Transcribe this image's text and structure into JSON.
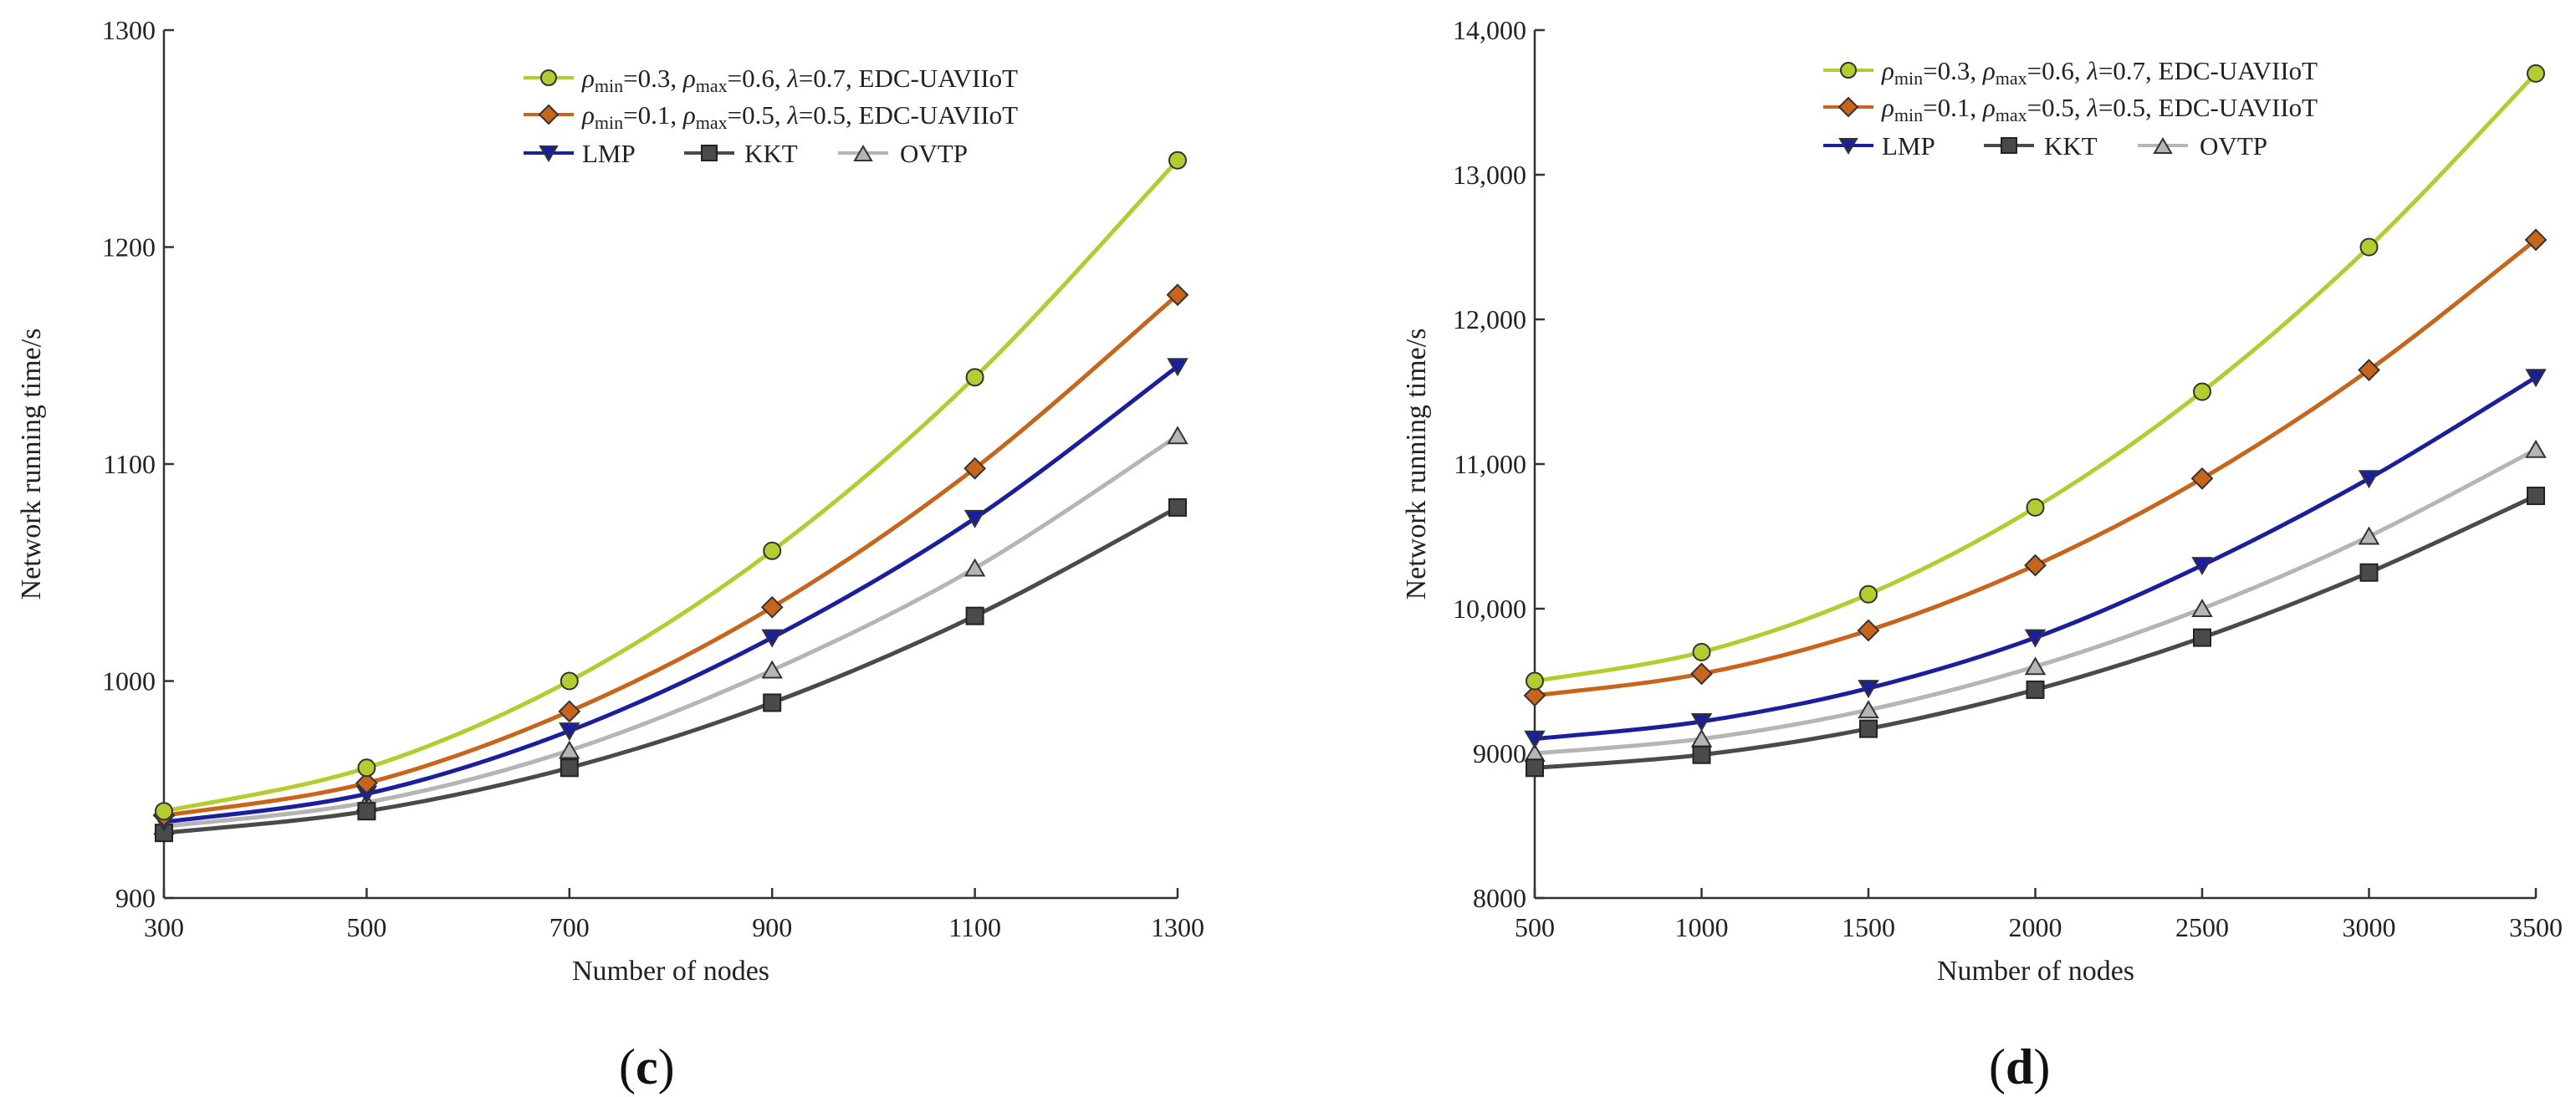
{
  "chart_data": [
    {
      "type": "line",
      "panel_label": "c",
      "xlabel": "Number of nodes",
      "ylabel": "Network running time/s",
      "x": [
        300,
        500,
        700,
        900,
        1100,
        1300
      ],
      "xticks": [
        "300",
        "500",
        "700",
        "900",
        "1100",
        "1300"
      ],
      "yticks": [
        "900",
        "1000",
        "1100",
        "1200",
        "1300"
      ],
      "xlim": [
        300,
        1300
      ],
      "ylim": [
        900,
        1300
      ],
      "series": [
        {
          "key": "s1",
          "rho_min": "0.3",
          "rho_max": "0.6",
          "lambda": "0.7",
          "method": "EDC-UAVIIoT",
          "color": "#b5cc2e",
          "marker": "circle",
          "values": [
            940,
            960,
            1000,
            1060,
            1140,
            1240
          ]
        },
        {
          "key": "s2",
          "rho_min": "0.1",
          "rho_max": "0.5",
          "lambda": "0.5",
          "method": "EDC-UAVIIoT",
          "color": "#c8651b",
          "marker": "diamond",
          "values": [
            938,
            953,
            986,
            1034,
            1098,
            1178
          ]
        },
        {
          "key": "s3",
          "name": "LMP",
          "color": "#1a1f9e",
          "marker": "triangle-down",
          "values": [
            935,
            948,
            977,
            1020,
            1075,
            1145
          ]
        },
        {
          "key": "s4",
          "name": "KKT",
          "color": "#4a4a4a",
          "marker": "square",
          "values": [
            930,
            940,
            960,
            990,
            1030,
            1080
          ]
        },
        {
          "key": "s5",
          "name": "OVTP",
          "color": "#b5b5b5",
          "marker": "triangle-up",
          "values": [
            933,
            944,
            968,
            1005,
            1052,
            1113
          ]
        }
      ]
    },
    {
      "type": "line",
      "panel_label": "d",
      "xlabel": "Number of nodes",
      "ylabel": "Network running time/s",
      "x": [
        500,
        1000,
        1500,
        2000,
        2500,
        3000,
        3500
      ],
      "xticks": [
        "500",
        "1000",
        "1500",
        "2000",
        "2500",
        "3000",
        "3500"
      ],
      "yticks": [
        "8000",
        "9000",
        "10,000",
        "11,000",
        "12,000",
        "13,000",
        "14,000"
      ],
      "xlim": [
        500,
        3500
      ],
      "ylim": [
        8000,
        14000
      ],
      "series": [
        {
          "key": "s1",
          "rho_min": "0.3",
          "rho_max": "0.6",
          "lambda": "0.7",
          "method": "EDC-UAVIIoT",
          "color": "#b5cc2e",
          "marker": "circle",
          "values": [
            9500,
            9700,
            10100,
            10700,
            11500,
            12500,
            13700
          ]
        },
        {
          "key": "s2",
          "rho_min": "0.1",
          "rho_max": "0.5",
          "lambda": "0.5",
          "method": "EDC-UAVIIoT",
          "color": "#c8651b",
          "marker": "diamond",
          "values": [
            9400,
            9550,
            9850,
            10300,
            10900,
            11650,
            12550
          ]
        },
        {
          "key": "s3",
          "name": "LMP",
          "color": "#1a1f9e",
          "marker": "triangle-down",
          "values": [
            9100,
            9220,
            9450,
            9800,
            10300,
            10900,
            11600
          ]
        },
        {
          "key": "s4",
          "name": "KKT",
          "color": "#4a4a4a",
          "marker": "square",
          "values": [
            8900,
            8990,
            9170,
            9440,
            9800,
            10250,
            10780
          ]
        },
        {
          "key": "s5",
          "name": "OVTP",
          "color": "#b5b5b5",
          "marker": "triangle-up",
          "values": [
            9000,
            9100,
            9300,
            9600,
            10000,
            10500,
            11100
          ]
        }
      ]
    }
  ]
}
